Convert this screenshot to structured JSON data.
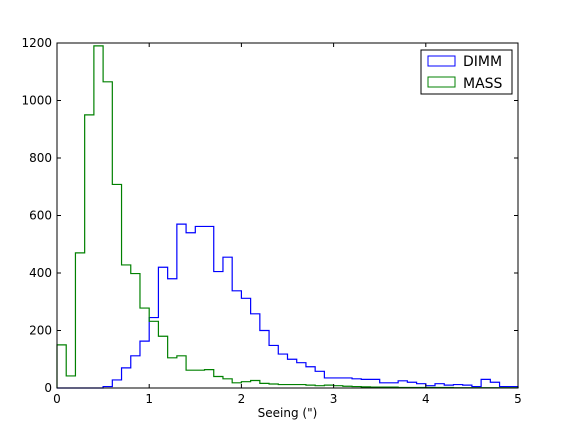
{
  "chart_data": {
    "type": "histogram",
    "xlabel": "Seeing (\")",
    "ylabel": "",
    "title": "",
    "xlim": [
      0,
      5
    ],
    "ylim": [
      0,
      1200
    ],
    "x_ticks": [
      0,
      1,
      2,
      3,
      4,
      5
    ],
    "x_tick_labels": [
      "0",
      "1",
      "2",
      "3",
      "4",
      "5"
    ],
    "y_ticks": [
      0,
      200,
      400,
      600,
      800,
      1000,
      1200
    ],
    "y_tick_labels": [
      "0",
      "200",
      "400",
      "600",
      "800",
      "1000",
      "1200"
    ],
    "grid": false,
    "legend_position": "top-right",
    "bin_edges": [
      0.0,
      0.1,
      0.2,
      0.3,
      0.4,
      0.5,
      0.6,
      0.7,
      0.8,
      0.9,
      1.0,
      1.1,
      1.2,
      1.3,
      1.4,
      1.5,
      1.6,
      1.7,
      1.8,
      1.9,
      2.0,
      2.1,
      2.2,
      2.3,
      2.4,
      2.5,
      2.6,
      2.7,
      2.8,
      2.9,
      3.0,
      3.1,
      3.2,
      3.3,
      3.4,
      3.5,
      3.6,
      3.7,
      3.8,
      3.9,
      4.0,
      4.1,
      4.2,
      4.3,
      4.4,
      4.5,
      4.6,
      4.7,
      4.8,
      4.9,
      5.0
    ],
    "series": [
      {
        "name": "DIMM",
        "color": "#0000ff",
        "counts": [
          0,
          0,
          0,
          0,
          0,
          5,
          28,
          70,
          112,
          163,
          245,
          420,
          380,
          570,
          540,
          562,
          562,
          405,
          455,
          338,
          312,
          258,
          200,
          148,
          118,
          100,
          88,
          74,
          58,
          35,
          35,
          35,
          32,
          30,
          30,
          18,
          18,
          25,
          20,
          15,
          8,
          15,
          10,
          12,
          10,
          5,
          30,
          20,
          5,
          5
        ]
      },
      {
        "name": "MASS",
        "color": "#008000",
        "counts": [
          150,
          42,
          470,
          950,
          1190,
          1065,
          708,
          428,
          398,
          278,
          232,
          180,
          105,
          112,
          62,
          62,
          64,
          40,
          32,
          18,
          22,
          26,
          16,
          14,
          12,
          12,
          12,
          10,
          8,
          10,
          8,
          6,
          5,
          4,
          3,
          3,
          3,
          2,
          2,
          2,
          2,
          2,
          2,
          1,
          1,
          1,
          1,
          1,
          1,
          1
        ]
      }
    ]
  }
}
